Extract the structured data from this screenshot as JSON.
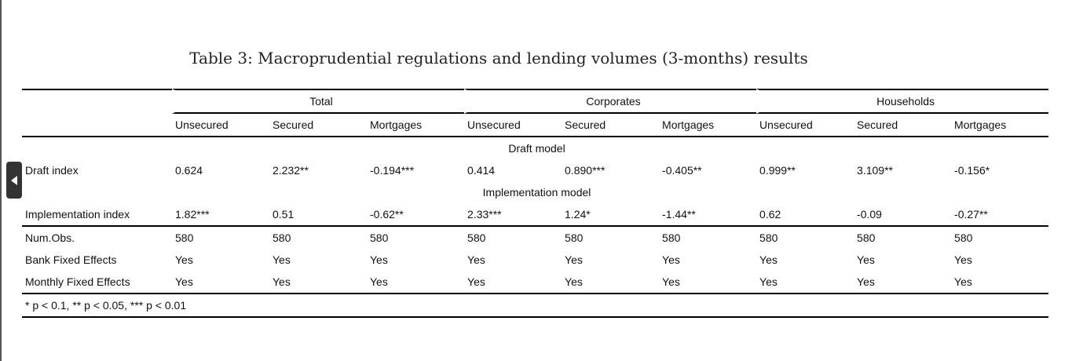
{
  "caption": "Table 3: Macroprudential regulations and lending volumes (3-months) results",
  "groups": [
    "Total",
    "Corporates",
    "Households"
  ],
  "subheaders": [
    "Unsecured",
    "Secured",
    "Mortgages",
    "Unsecured",
    "Secured",
    "Mortgages",
    "Unsecured",
    "Secured",
    "Mortgages"
  ],
  "sections": {
    "draft": "Draft model",
    "implementation": "Implementation model"
  },
  "rows": {
    "draft": {
      "label": "Draft index",
      "values": [
        "0.624",
        "2.232**",
        "-0.194***",
        "0.414",
        "0.890***",
        "-0.405**",
        "0.999**",
        "3.109**",
        "-0.156*"
      ]
    },
    "implementation": {
      "label": "Implementation index",
      "values": [
        "1.82***",
        "0.51",
        "-0.62**",
        "2.33***",
        "1.24*",
        "-1.44**",
        "0.62",
        "-0.09",
        "-0.27**"
      ]
    },
    "nobs": {
      "label": "Num.Obs.",
      "values": [
        "580",
        "580",
        "580",
        "580",
        "580",
        "580",
        "580",
        "580",
        "580"
      ]
    },
    "bank_fe": {
      "label": "Bank Fixed Effects",
      "values": [
        "Yes",
        "Yes",
        "Yes",
        "Yes",
        "Yes",
        "Yes",
        "Yes",
        "Yes",
        "Yes"
      ]
    },
    "monthly_fe": {
      "label": "Monthly Fixed Effects",
      "values": [
        "Yes",
        "Yes",
        "Yes",
        "Yes",
        "Yes",
        "Yes",
        "Yes",
        "Yes",
        "Yes"
      ]
    }
  },
  "footnote": "* p < 0.1, ** p < 0.05, *** p < 0.01",
  "ui": {
    "collapse_tab_icon": "chevron-left-icon"
  }
}
